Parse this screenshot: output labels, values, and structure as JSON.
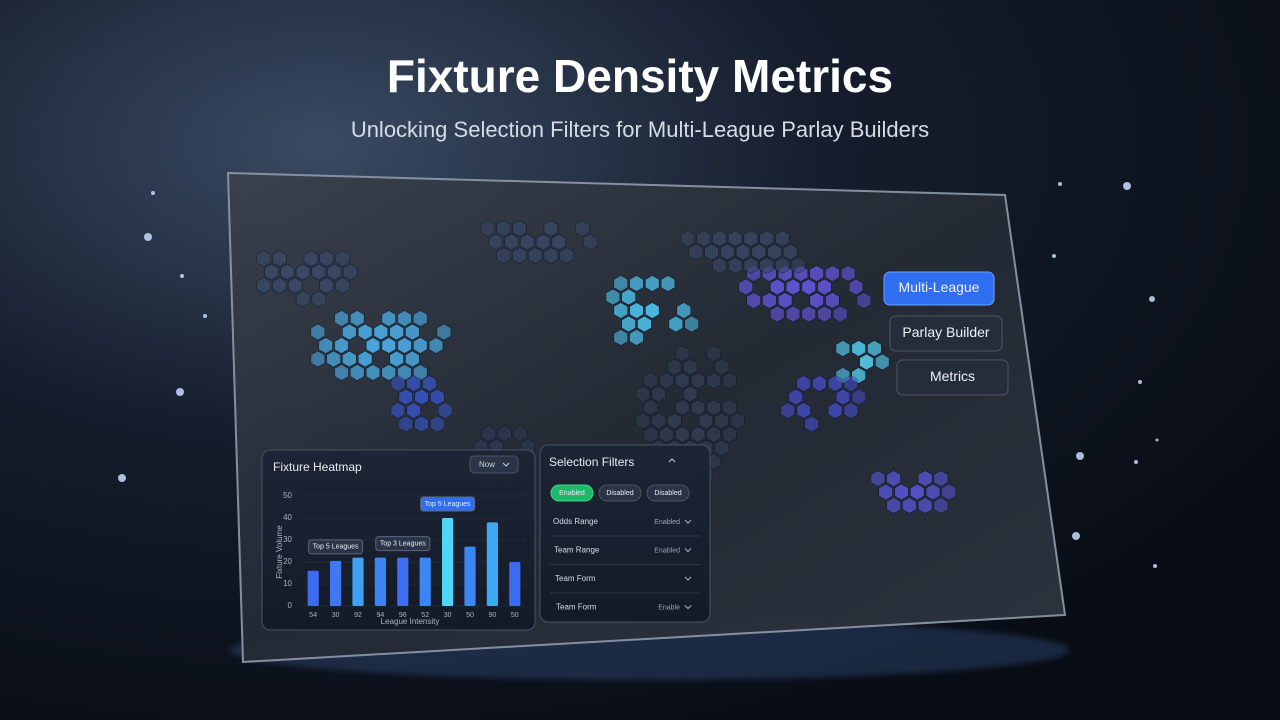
{
  "header": {
    "title": "Fixture Density Metrics",
    "subtitle": "Unlocking Selection Filters for Multi-League Parlay Builders"
  },
  "nav_buttons": [
    "Multi-League",
    "Parlay Builder",
    "Metrics"
  ],
  "heatmap_panel": {
    "title": "Fixture Heatmap",
    "dropdown": "Now",
    "chart_data": {
      "type": "bar",
      "x_label": "League Intensity",
      "y_label": "Fixture Volume",
      "categories": [
        "54",
        "30",
        "92",
        "94",
        "96",
        "52",
        "30",
        "50",
        "90",
        "50"
      ],
      "values": [
        16,
        20.5,
        22,
        22,
        22,
        22,
        40,
        27,
        38,
        20
      ],
      "colors": [
        "#3b6cf0",
        "#3f78f2",
        "#3fa0f5",
        "#3b86f2",
        "#3f6ff0",
        "#3b86f2",
        "#4fd6f7",
        "#3b86f2",
        "#3fa8f5",
        "#3b6cf0"
      ],
      "ylim": [
        0,
        50
      ],
      "yticks": [
        0,
        10,
        20,
        30,
        40,
        50
      ],
      "annotations": [
        {
          "text": "Top 5 Leagues",
          "index": 1
        },
        {
          "text": "Top 3 Leagues",
          "index": 4
        },
        {
          "text": "Top 5 Leagues",
          "index": 6
        }
      ]
    }
  },
  "filters_panel": {
    "title": "Selection Filters",
    "chips": [
      "Enabled",
      "Disabled",
      "Disabled"
    ],
    "rows": [
      {
        "label": "Odds Range",
        "value": "Enabled"
      },
      {
        "label": "Team Range",
        "value": "Enabled"
      },
      {
        "label": "Team Form"
      },
      {
        "label": "Team Form",
        "value": "Enable"
      }
    ]
  }
}
